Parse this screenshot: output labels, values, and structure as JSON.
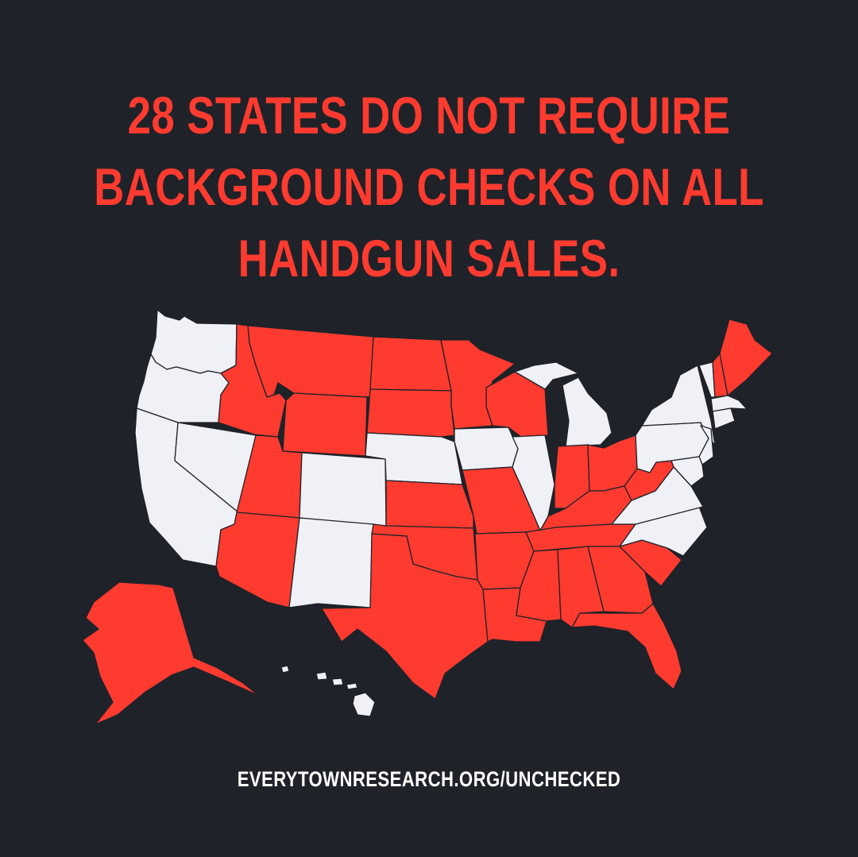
{
  "headline": {
    "lines": [
      "28 STATES DO NOT REQUIRE",
      "BACKGROUND CHECKS ON ALL",
      "HANDGUN SALES."
    ]
  },
  "footer_url": "EVERYTOWNRESEARCH.ORG/UNCHECKED",
  "colors": {
    "background": "#1f2229",
    "no_requirement": "#ff3b30",
    "requirement": "#f0f1f7"
  },
  "map": {
    "region": "United States",
    "states": [
      {
        "name": "Washington",
        "status": "requirement"
      },
      {
        "name": "Oregon",
        "status": "requirement"
      },
      {
        "name": "California",
        "status": "requirement"
      },
      {
        "name": "Nevada",
        "status": "requirement"
      },
      {
        "name": "Idaho",
        "status": "no_requirement"
      },
      {
        "name": "Montana",
        "status": "no_requirement"
      },
      {
        "name": "Wyoming",
        "status": "no_requirement"
      },
      {
        "name": "Utah",
        "status": "no_requirement"
      },
      {
        "name": "Colorado",
        "status": "requirement"
      },
      {
        "name": "Arizona",
        "status": "no_requirement"
      },
      {
        "name": "New Mexico",
        "status": "requirement"
      },
      {
        "name": "North Dakota",
        "status": "no_requirement"
      },
      {
        "name": "South Dakota",
        "status": "no_requirement"
      },
      {
        "name": "Nebraska",
        "status": "requirement"
      },
      {
        "name": "Kansas",
        "status": "no_requirement"
      },
      {
        "name": "Oklahoma",
        "status": "no_requirement"
      },
      {
        "name": "Texas",
        "status": "no_requirement"
      },
      {
        "name": "Minnesota",
        "status": "no_requirement"
      },
      {
        "name": "Iowa",
        "status": "requirement"
      },
      {
        "name": "Missouri",
        "status": "no_requirement"
      },
      {
        "name": "Arkansas",
        "status": "no_requirement"
      },
      {
        "name": "Louisiana",
        "status": "no_requirement"
      },
      {
        "name": "Wisconsin",
        "status": "no_requirement"
      },
      {
        "name": "Illinois",
        "status": "requirement"
      },
      {
        "name": "Michigan",
        "status": "requirement"
      },
      {
        "name": "Indiana",
        "status": "no_requirement"
      },
      {
        "name": "Ohio",
        "status": "no_requirement"
      },
      {
        "name": "Kentucky",
        "status": "no_requirement"
      },
      {
        "name": "Tennessee",
        "status": "no_requirement"
      },
      {
        "name": "Mississippi",
        "status": "no_requirement"
      },
      {
        "name": "Alabama",
        "status": "no_requirement"
      },
      {
        "name": "Georgia",
        "status": "no_requirement"
      },
      {
        "name": "Florida",
        "status": "no_requirement"
      },
      {
        "name": "South Carolina",
        "status": "no_requirement"
      },
      {
        "name": "North Carolina",
        "status": "requirement"
      },
      {
        "name": "Virginia",
        "status": "requirement"
      },
      {
        "name": "West Virginia",
        "status": "no_requirement"
      },
      {
        "name": "Pennsylvania",
        "status": "requirement"
      },
      {
        "name": "New York",
        "status": "requirement"
      },
      {
        "name": "New Jersey",
        "status": "requirement"
      },
      {
        "name": "Delaware",
        "status": "requirement"
      },
      {
        "name": "Maryland",
        "status": "requirement"
      },
      {
        "name": "Vermont",
        "status": "requirement"
      },
      {
        "name": "New Hampshire",
        "status": "no_requirement"
      },
      {
        "name": "Maine",
        "status": "no_requirement"
      },
      {
        "name": "Massachusetts",
        "status": "requirement"
      },
      {
        "name": "Connecticut",
        "status": "requirement"
      },
      {
        "name": "Rhode Island",
        "status": "requirement"
      },
      {
        "name": "Alaska",
        "status": "no_requirement"
      },
      {
        "name": "Hawaii",
        "status": "requirement"
      }
    ]
  }
}
